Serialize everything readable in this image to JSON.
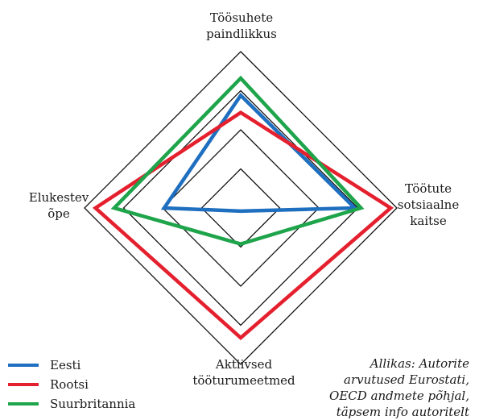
{
  "chart_data": {
    "type": "radar",
    "axes": [
      {
        "label": "Töösuhete\npaindlikkus"
      },
      {
        "label": "Töötute\nsotsiaalne\nkaitse"
      },
      {
        "label": "Aktiivsed\ntööturumeetmed"
      },
      {
        "label": "Elukestev\nõpe"
      }
    ],
    "series": [
      {
        "name": "Eesti",
        "color": "#1f6fc0",
        "values": [
          0.72,
          0.73,
          0.02,
          0.49
        ]
      },
      {
        "name": "Rootsi",
        "color": "#e5202e",
        "values": [
          0.61,
          0.96,
          0.83,
          0.93
        ]
      },
      {
        "name": "Suurbritannia",
        "color": "#1ea44b",
        "values": [
          0.83,
          0.77,
          0.23,
          0.81
        ]
      }
    ],
    "grid_levels": 4,
    "legend_position": "bottom-left",
    "source_note": "Allikas: Autorite\narvutused Eurostati,\nOECD andmete põhjal,\ntäpsem info autoritelt"
  }
}
